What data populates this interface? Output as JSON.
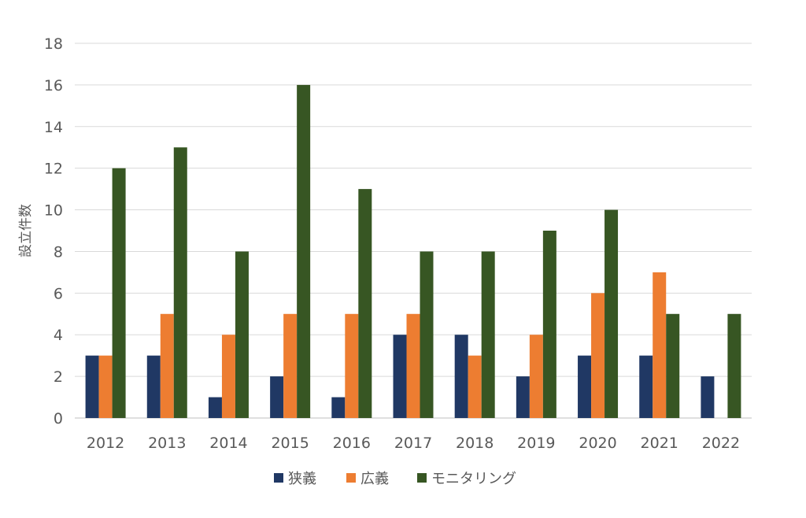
{
  "chart_data": {
    "type": "bar",
    "categories": [
      "2012",
      "2013",
      "2014",
      "2015",
      "2016",
      "2017",
      "2018",
      "2019",
      "2020",
      "2021",
      "2022"
    ],
    "series": [
      {
        "name": "狭義",
        "color": "#203864",
        "values": [
          3,
          3,
          1,
          2,
          1,
          4,
          4,
          2,
          3,
          3,
          2
        ]
      },
      {
        "name": "広義",
        "color": "#ED7D31",
        "values": [
          3,
          5,
          4,
          5,
          5,
          5,
          3,
          4,
          6,
          7,
          0
        ]
      },
      {
        "name": "モニタリング",
        "color": "#375623",
        "values": [
          12,
          13,
          8,
          16,
          11,
          8,
          8,
          9,
          10,
          5,
          5
        ]
      }
    ],
    "ylabel": "設立件数",
    "ylim": [
      0,
      18
    ],
    "yticks": [
      "0",
      "2",
      "4",
      "6",
      "8",
      "10",
      "12",
      "14",
      "16",
      "18"
    ],
    "grid": true,
    "legend": "bottom"
  }
}
